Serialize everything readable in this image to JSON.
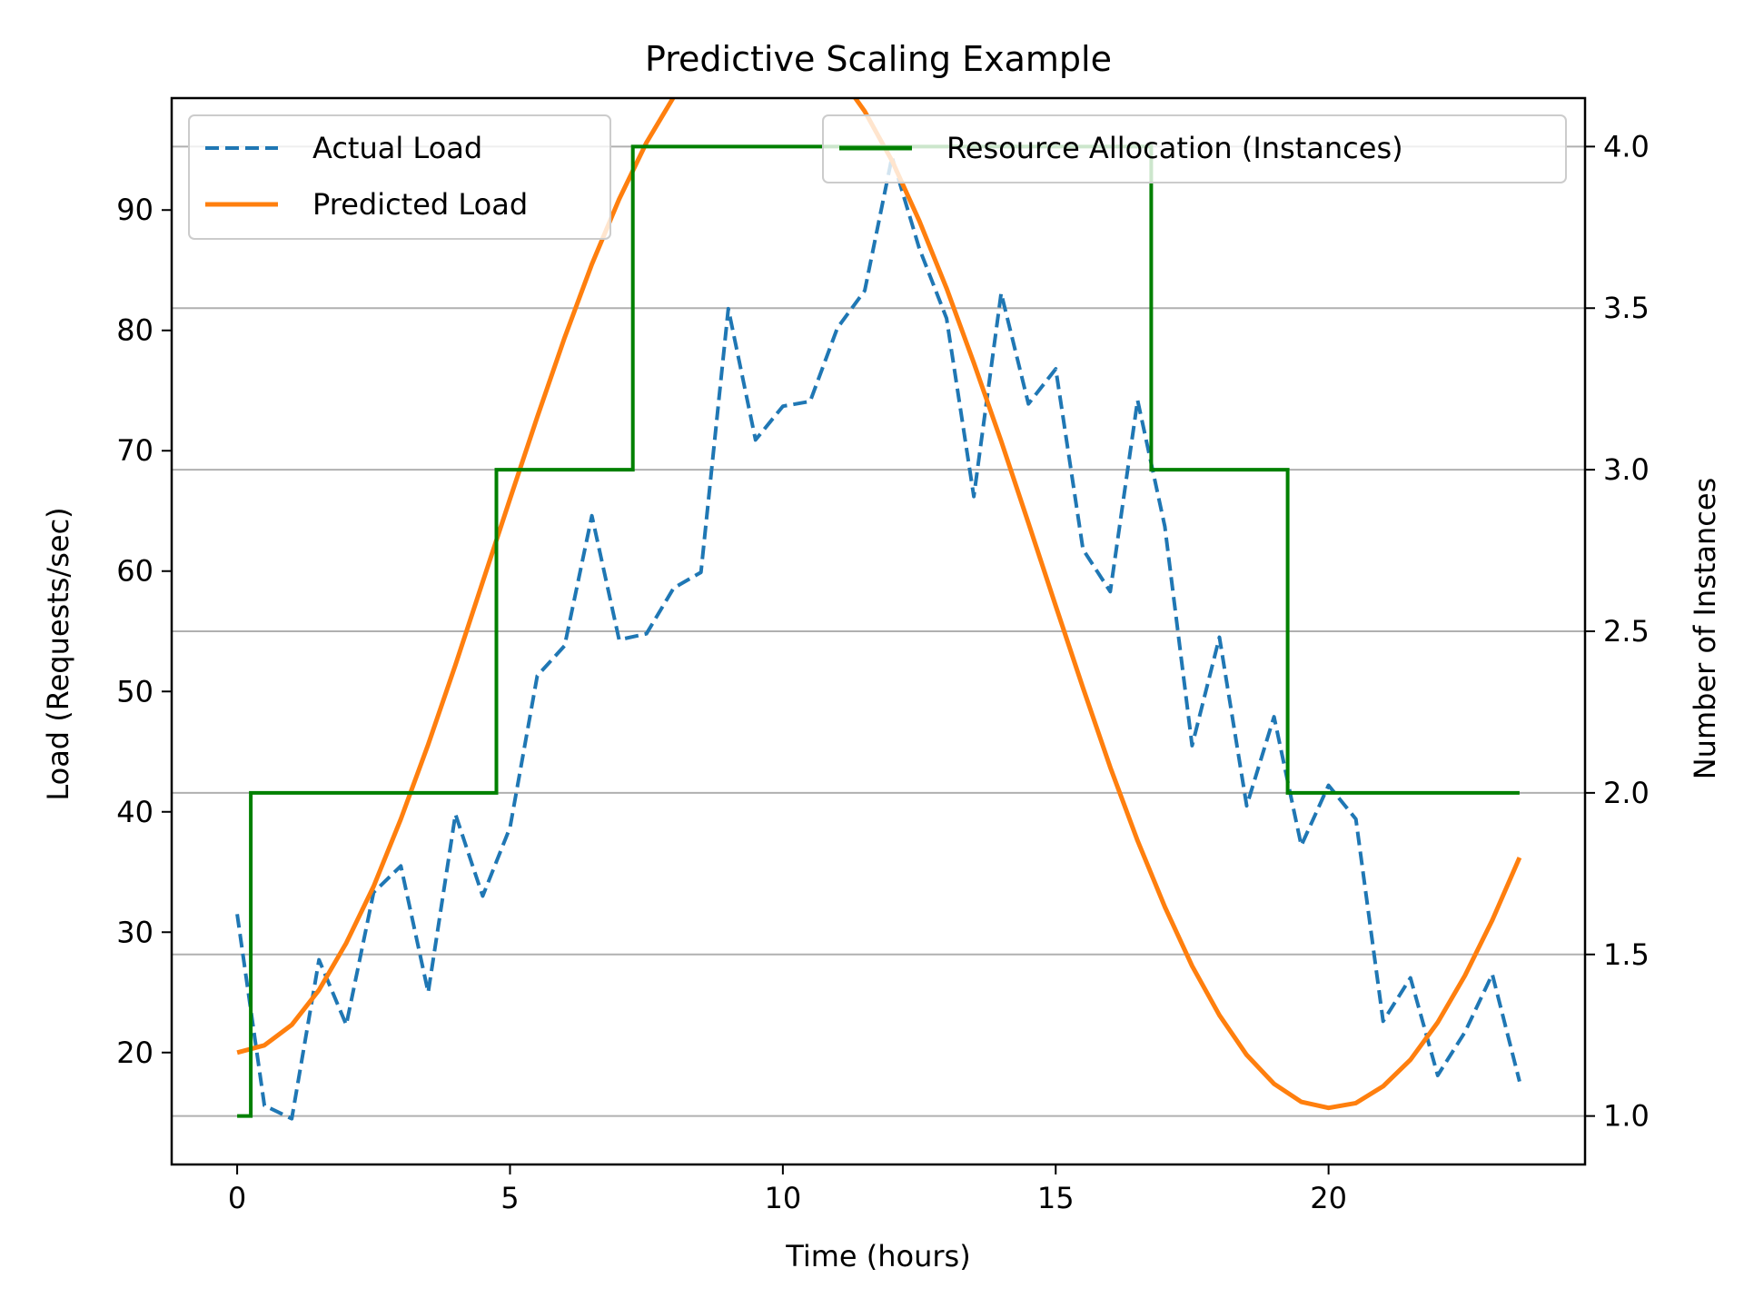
{
  "chart_data": {
    "type": "line",
    "title": "Predictive Scaling Example",
    "xlabel": "Time (hours)",
    "ylabel": "Load (Requests/sec)",
    "y2label": "Number of Instances",
    "xlim": [
      -1.2,
      24.7
    ],
    "ylim": [
      10.7,
      99.3
    ],
    "y2lim": [
      0.85,
      4.15
    ],
    "xticks": [
      0,
      5,
      10,
      15,
      20
    ],
    "yticks": [
      20,
      30,
      40,
      50,
      60,
      70,
      80,
      90
    ],
    "y2ticks": [
      1.0,
      1.5,
      2.0,
      2.5,
      3.0,
      3.5,
      4.0
    ],
    "y2tick_labels": [
      "1.0",
      "1.5",
      "2.0",
      "2.5",
      "3.0",
      "3.5",
      "4.0"
    ],
    "grid": "horizontal lines at right-axis ticks",
    "x": [
      0,
      0.5,
      1,
      1.5,
      2,
      2.5,
      3,
      3.5,
      4,
      4.5,
      5,
      5.5,
      6,
      6.5,
      7,
      7.5,
      8,
      8.5,
      9,
      9.5,
      10,
      10.5,
      11,
      11.5,
      12,
      12.5,
      13,
      13.5,
      14,
      14.5,
      15,
      15.5,
      16,
      16.5,
      17,
      17.5,
      18,
      18.5,
      19,
      19.5,
      20,
      20.5,
      21,
      21.5,
      22,
      22.5,
      23,
      23.5
    ],
    "series": [
      {
        "name": "Actual Load",
        "axis": "left",
        "style": "dashed",
        "color": "#1f77b4",
        "values": [
          31.5,
          15.6,
          14.5,
          27.7,
          22.3,
          33.3,
          35.5,
          25.0,
          39.8,
          33.0,
          38.7,
          51.3,
          53.8,
          64.6,
          54.3,
          54.8,
          58.6,
          59.9,
          81.8,
          70.9,
          73.7,
          74.1,
          80.2,
          83.3,
          94.4,
          86.8,
          81.0,
          66.2,
          83.1,
          73.9,
          76.8,
          61.8,
          58.3,
          74.2,
          63.7,
          45.5,
          54.5,
          40.5,
          47.9,
          37.2,
          42.2,
          39.4,
          22.6,
          26.2,
          18.1,
          21.7,
          26.5,
          17.6
        ]
      },
      {
        "name": "Predicted Load",
        "axis": "left",
        "style": "solid",
        "color": "#ff7f0e",
        "values": [
          20.0,
          20.6,
          22.3,
          25.2,
          29.1,
          33.8,
          39.4,
          45.6,
          52.2,
          59.1,
          66.0,
          72.8,
          79.4,
          85.5,
          90.9,
          95.6,
          99.4,
          102.2,
          104.0,
          104.9,
          104.8,
          103.6,
          101.4,
          98.2,
          94.1,
          89.1,
          83.5,
          77.3,
          70.8,
          64.0,
          57.1,
          50.3,
          43.7,
          37.6,
          32.1,
          27.2,
          23.1,
          19.8,
          17.4,
          15.9,
          15.4,
          15.8,
          17.2,
          19.4,
          22.5,
          26.4,
          31.0,
          36.2
        ]
      },
      {
        "name": "Resource Allocation (Instances)",
        "axis": "right",
        "style": "step",
        "color": "#008000",
        "values": [
          1,
          2,
          2,
          2,
          2,
          2,
          2,
          2,
          2,
          2,
          3,
          3,
          3,
          3,
          3,
          4,
          4,
          4,
          4,
          4,
          4,
          4,
          4,
          4,
          4,
          4,
          4,
          4,
          4,
          4,
          4,
          4,
          4,
          4,
          3,
          3,
          3,
          3,
          3,
          2,
          2,
          2,
          2,
          2,
          2,
          2,
          2,
          2
        ]
      }
    ],
    "legend": [
      {
        "placement": "top-left",
        "entries": [
          "Actual Load",
          "Predicted Load"
        ]
      },
      {
        "placement": "top-right",
        "entries": [
          "Resource Allocation (Instances)"
        ]
      }
    ]
  }
}
